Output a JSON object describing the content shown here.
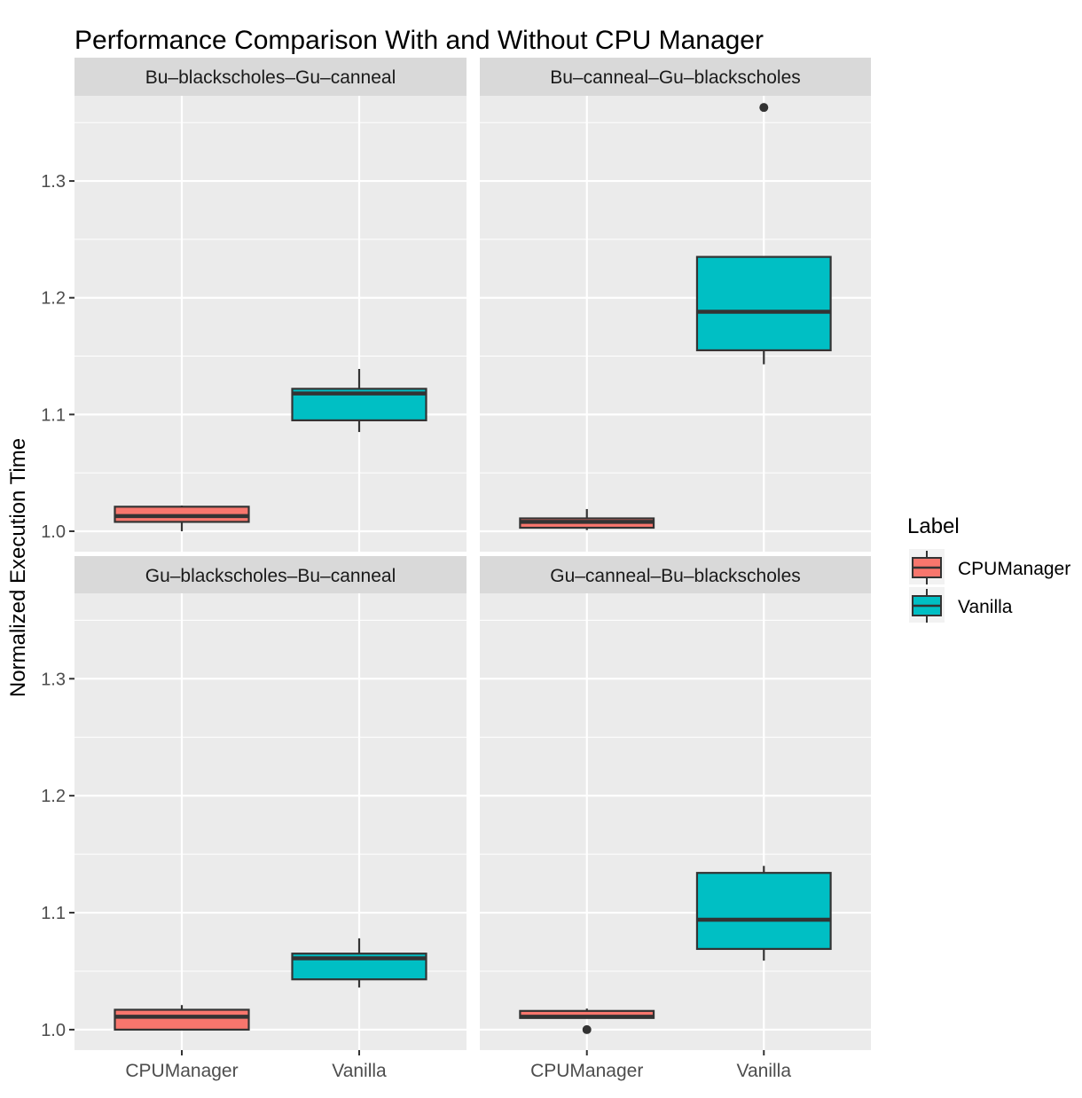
{
  "chart_data": {
    "type": "boxplot",
    "title": "Performance Comparison With and Without CPU Manager",
    "xlabel": "",
    "ylabel": "Normalized Execution Time",
    "ylim": [
      0.9825,
      1.373
    ],
    "yticks": [
      "1.0",
      "1.1",
      "1.2",
      "1.3"
    ],
    "ytick_values": [
      1.0,
      1.1,
      1.2,
      1.3
    ],
    "categories": [
      "CPUManager",
      "Vanilla"
    ],
    "grid": true,
    "legend": {
      "title": "Label",
      "position": "right",
      "entries": [
        "CPUManager",
        "Vanilla"
      ]
    },
    "colors": {
      "CPUManager": "#F8766D",
      "Vanilla": "#00BFC4"
    },
    "panels": [
      {
        "title": "Bu–blackscholes–Gu–canneal",
        "boxes": [
          {
            "category": "CPUManager",
            "whisker_low": 1.0,
            "q1": 1.008,
            "median": 1.013,
            "q3": 1.021,
            "whisker_high": 1.022,
            "outliers": []
          },
          {
            "category": "Vanilla",
            "whisker_low": 1.085,
            "q1": 1.095,
            "median": 1.118,
            "q3": 1.122,
            "whisker_high": 1.139,
            "outliers": []
          }
        ]
      },
      {
        "title": "Bu–canneal–Gu–blackscholes",
        "boxes": [
          {
            "category": "CPUManager",
            "whisker_low": 1.001,
            "q1": 1.003,
            "median": 1.008,
            "q3": 1.011,
            "whisker_high": 1.019,
            "outliers": []
          },
          {
            "category": "Vanilla",
            "whisker_low": 1.143,
            "q1": 1.155,
            "median": 1.188,
            "q3": 1.235,
            "whisker_high": 1.235,
            "outliers": [
              1.363
            ]
          }
        ]
      },
      {
        "title": "Gu–blackscholes–Bu–canneal",
        "boxes": [
          {
            "category": "CPUManager",
            "whisker_low": 1.0,
            "q1": 1.0,
            "median": 1.011,
            "q3": 1.017,
            "whisker_high": 1.021,
            "outliers": []
          },
          {
            "category": "Vanilla",
            "whisker_low": 1.036,
            "q1": 1.043,
            "median": 1.061,
            "q3": 1.065,
            "whisker_high": 1.078,
            "outliers": []
          }
        ]
      },
      {
        "title": "Gu–canneal–Bu–blackscholes",
        "boxes": [
          {
            "category": "CPUManager",
            "whisker_low": 1.01,
            "q1": 1.01,
            "median": 1.011,
            "q3": 1.016,
            "whisker_high": 1.018,
            "outliers": [
              1.0
            ]
          },
          {
            "category": "Vanilla",
            "whisker_low": 1.059,
            "q1": 1.069,
            "median": 1.094,
            "q3": 1.134,
            "whisker_high": 1.14,
            "outliers": []
          }
        ]
      }
    ]
  }
}
